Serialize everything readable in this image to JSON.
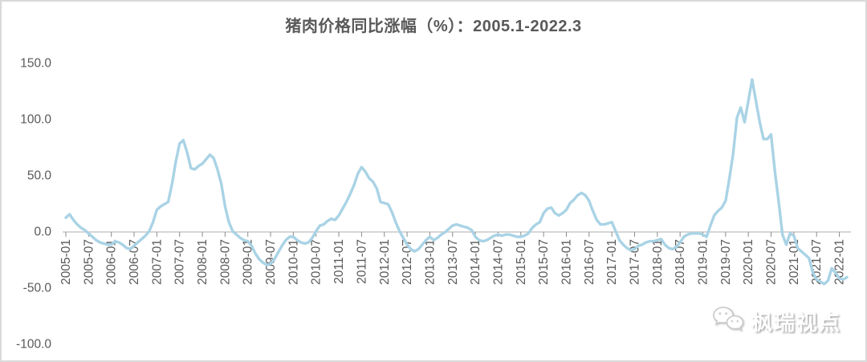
{
  "title": "猪肉价格同比涨幅（%）：2005.1-2022.3",
  "watermark": {
    "label": "枫瑞视点",
    "icon": "wechat-icon"
  },
  "colors": {
    "line": "#a9d3e5",
    "axis_line": "#c9c9c9",
    "tick": "#8c8c8c",
    "axis_text": "#595959",
    "title_text": "#595959"
  },
  "chart_data": {
    "type": "line",
    "title": "猪肉价格同比涨幅（%）：2005.1-2022.3",
    "xlabel": "",
    "ylabel": "",
    "x_monthly_from": "2005-01",
    "x_monthly_to": "2022-03",
    "x_tick_labels": [
      "2005-01",
      "2005-07",
      "2006-01",
      "2006-07",
      "2007-01",
      "2007-07",
      "2008-01",
      "2008-07",
      "2009-01",
      "2009-07",
      "2010-01",
      "2010-07",
      "2011-01",
      "2011-07",
      "2012-01",
      "2012-07",
      "2013-01",
      "2013-07",
      "2014-01",
      "2014-07",
      "2015-01",
      "2015-07",
      "2016-01",
      "2016-07",
      "2017-01",
      "2017-07",
      "2018-01",
      "2018-07",
      "2019-01",
      "2019-07",
      "2020-01",
      "2020-07",
      "2021-01",
      "2021-07",
      "2022-01"
    ],
    "y_tick_labels": [
      "150.0",
      "100.0",
      "50.0",
      "0.0",
      "-50.0",
      "-100.0"
    ],
    "ylim": [
      -100,
      150
    ],
    "grid": false,
    "legend": "none",
    "series": [
      {
        "name": "猪肉价格同比涨幅(%)",
        "values": [
          12,
          15,
          10,
          6,
          3,
          1,
          -2,
          -5,
          -8,
          -10,
          -11,
          -12,
          -12,
          -9,
          -10,
          -12,
          -15,
          -16,
          -13,
          -10,
          -7,
          -4,
          0,
          8,
          19,
          22,
          24,
          26,
          42,
          62,
          78,
          81,
          70,
          56,
          55,
          58,
          60,
          64,
          68,
          65,
          55,
          42,
          22,
          8,
          0,
          -3,
          -6,
          -8,
          -9,
          -13,
          -20,
          -25,
          -28,
          -30,
          -29,
          -25,
          -19,
          -13,
          -8,
          -5,
          -5,
          -8,
          -10,
          -11,
          -10,
          -6,
          0,
          5,
          6,
          9,
          11,
          10,
          14,
          20,
          26,
          33,
          41,
          51,
          57,
          53,
          47,
          44,
          38,
          26,
          25,
          24,
          17,
          8,
          0,
          -6,
          -12,
          -16,
          -18,
          -16,
          -12,
          -8,
          -5,
          -8,
          -6,
          -3,
          -1,
          2,
          5,
          6,
          5,
          4,
          3,
          1,
          -5,
          -8,
          -9,
          -8,
          -6,
          -4,
          -3,
          -4,
          -3,
          -3,
          -4,
          -5,
          -5,
          -4,
          -2,
          3,
          6,
          8,
          16,
          20,
          21,
          16,
          14,
          16,
          19,
          25,
          28,
          32,
          34,
          32,
          27,
          18,
          10,
          6,
          6,
          7,
          8,
          0,
          -8,
          -12,
          -15,
          -17,
          -16,
          -13,
          -12,
          -10,
          -9,
          -9,
          -8,
          -7,
          -12,
          -15,
          -16,
          -14,
          -10,
          -5,
          -3,
          -2,
          -2,
          -2,
          -3,
          -5,
          5,
          14,
          18,
          21,
          27,
          47,
          69,
          101,
          110,
          97,
          116,
          135,
          116,
          97,
          82,
          82,
          86,
          53,
          26,
          -3,
          -12,
          -2,
          -4,
          -15,
          -18,
          -21,
          -24,
          -37,
          -43,
          -45,
          -47,
          -44,
          -33,
          -37,
          -42,
          -43,
          -41
        ]
      }
    ]
  }
}
